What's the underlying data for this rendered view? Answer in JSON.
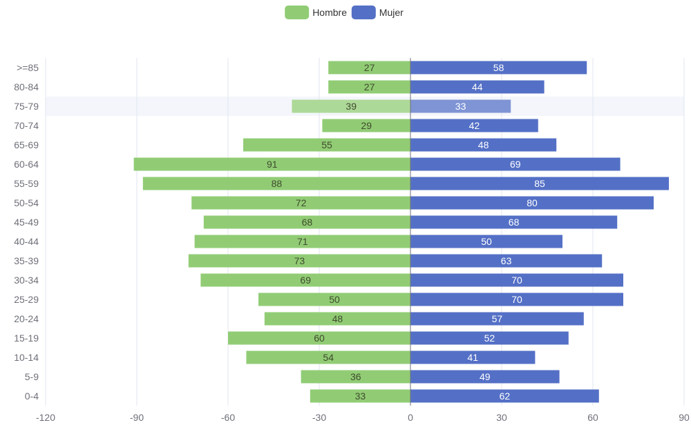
{
  "chart_data": {
    "type": "bar",
    "orientation": "horizontal",
    "layout": "population-pyramid",
    "categories": [
      ">=85",
      "80-84",
      "75-79",
      "70-74",
      "65-69",
      "60-64",
      "55-59",
      "50-54",
      "45-49",
      "40-44",
      "35-39",
      "30-34",
      "25-29",
      "20-24",
      "15-19",
      "10-14",
      "5-9",
      "0-4"
    ],
    "series": [
      {
        "name": "Hombre",
        "direction": "left",
        "color": "#91cc75",
        "values": [
          27,
          27,
          39,
          29,
          55,
          91,
          88,
          72,
          68,
          71,
          73,
          69,
          50,
          48,
          60,
          54,
          36,
          33
        ]
      },
      {
        "name": "Mujer",
        "direction": "right",
        "color": "#5470c6",
        "values": [
          58,
          44,
          33,
          42,
          48,
          69,
          85,
          80,
          68,
          50,
          63,
          70,
          70,
          57,
          52,
          41,
          49,
          62
        ]
      }
    ],
    "xlim": [
      -120,
      90
    ],
    "xticks": [
      -120,
      -90,
      -60,
      -30,
      0,
      30,
      60,
      90
    ],
    "grid": "vertical",
    "legend": "top-center",
    "highlighted_category": "75-79"
  }
}
